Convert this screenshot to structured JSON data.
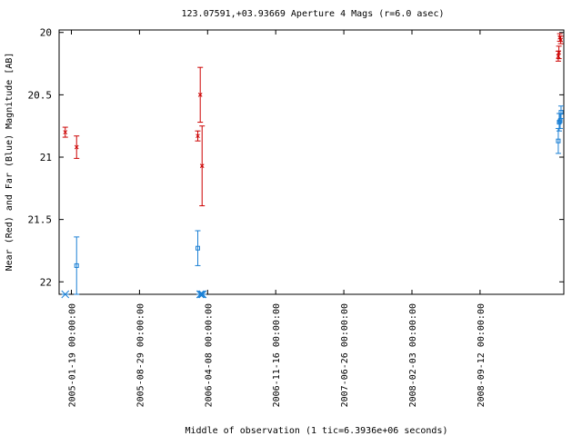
{
  "chart_data": {
    "type": "scatter",
    "title": "123.07591,+03.93669   Aperture 4 Mags (r=6.0 asec)",
    "xlabel": "Middle of observation (1 tic=6.3936e+06 seconds)",
    "ylabel": "Near (Red) and Far (Blue) Magnitude [AB]",
    "y_inverted": true,
    "ylim": [
      22.1,
      19.98
    ],
    "yticks": [
      20,
      20.5,
      21,
      21.5,
      22
    ],
    "ytick_labels": [
      "20",
      "20.5",
      "21",
      "21.5",
      "22"
    ],
    "xlim": [
      "2004-12-10",
      "2009-06-12"
    ],
    "xticks": [
      "2005-01-19",
      "2005-08-29",
      "2006-04-08",
      "2006-11-16",
      "2007-06-26",
      "2008-02-03",
      "2008-09-12"
    ],
    "xtick_labels": [
      "2005-01-19 00:00:00",
      "2005-08-29 00:00:00",
      "2006-04-08 00:00:00",
      "2006-11-16 00:00:00",
      "2007-06-26 00:00:00",
      "2008-02-03 00:00:00",
      "2008-09-12 00:00:00"
    ],
    "grid": false,
    "series": [
      {
        "color": "#cc0000",
        "marker": "x",
        "points": [
          {
            "x": "2004-12-30",
            "y": 20.8,
            "err": 0.04
          },
          {
            "x": "2005-02-05",
            "y": 20.92,
            "err": 0.09
          },
          {
            "x": "2006-03-07",
            "y": 20.83,
            "err": 0.04
          },
          {
            "x": "2006-03-15",
            "y": 20.5,
            "err": 0.22
          },
          {
            "x": "2006-03-21",
            "y": 21.07,
            "err": 0.32
          },
          {
            "x": "2009-05-25",
            "y": 20.19,
            "err": 0.04
          },
          {
            "x": "2009-05-27",
            "y": 20.16,
            "err": 0.05
          },
          {
            "x": "2009-05-30",
            "y": 20.04,
            "err": 0.03
          },
          {
            "x": "2009-06-02",
            "y": 20.06,
            "err": 0.03
          }
        ]
      },
      {
        "color": "#1a7fd4",
        "marker": "square",
        "points": [
          {
            "x": "2005-02-05",
            "y": 21.87,
            "err": 0.23
          },
          {
            "x": "2006-03-07",
            "y": 21.73,
            "err": 0.14
          },
          {
            "x": "2009-05-25",
            "y": 20.87,
            "err": 0.1
          },
          {
            "x": "2009-05-28",
            "y": 20.72,
            "err": 0.07
          },
          {
            "x": "2009-05-31",
            "y": 20.71,
            "err": 0.06
          },
          {
            "x": "2009-06-03",
            "y": 20.64,
            "err": 0.05
          }
        ]
      }
    ],
    "axis_markers": {
      "color": "#1a7fd4",
      "marker": "asterisk",
      "x": [
        "2004-12-30",
        "2006-03-15",
        "2006-03-19",
        "2006-03-23"
      ]
    }
  }
}
